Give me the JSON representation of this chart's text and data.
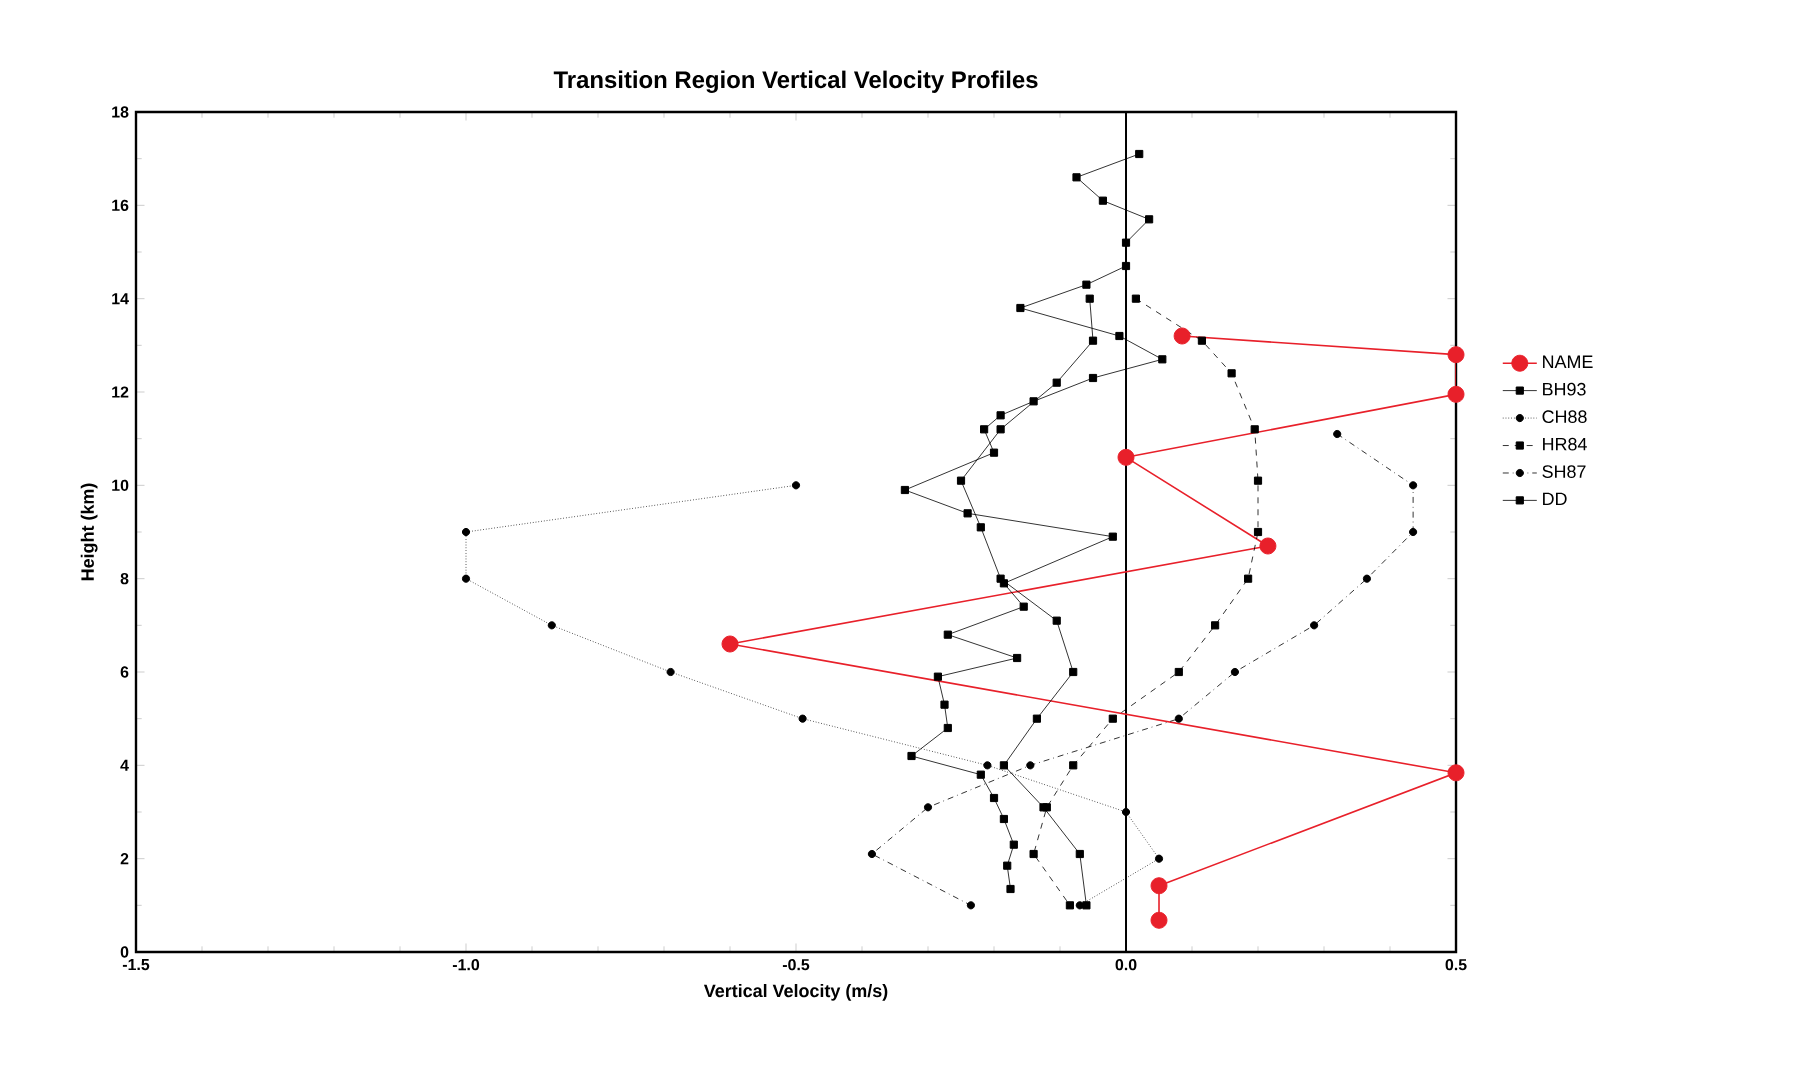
{
  "chart_data": {
    "type": "line",
    "title": "Transition Region Vertical Velocity Profiles",
    "xlabel": "Vertical Velocity (m/s)",
    "ylabel": "Height (km)",
    "xlim": [
      -1.5,
      0.5
    ],
    "ylim": [
      0,
      18
    ],
    "xticks": [
      {
        "value": -1.5,
        "label": "-1.5"
      },
      {
        "value": -1.0,
        "label": "-1.0"
      },
      {
        "value": -0.5,
        "label": "-0.5"
      },
      {
        "value": 0.0,
        "label": "0.0"
      },
      {
        "value": 0.5,
        "label": "0.5"
      }
    ],
    "yticks": [
      0,
      2,
      4,
      6,
      8,
      10,
      12,
      14,
      16,
      18
    ],
    "grid": false,
    "legend": "right",
    "ref_lines": [
      {
        "axis": "x",
        "value": 0,
        "color": "#000000",
        "line_style": "solid"
      }
    ],
    "series": [
      {
        "name": "NAME",
        "color": "#e8202a",
        "marker": "circle",
        "line_style": "solid",
        "x": [
          0.085,
          0.5,
          0.5,
          0.0,
          0.215,
          -0.6,
          0.5,
          0.05,
          0.05
        ],
        "values": [
          13.2,
          12.8,
          11.95,
          10.6,
          8.7,
          6.6,
          3.84,
          1.42,
          0.68
        ]
      },
      {
        "name": "BH93",
        "color": "#000000",
        "marker": "square",
        "line_style": "solid",
        "x": [
          -0.055,
          -0.05,
          -0.105,
          -0.19,
          -0.25,
          -0.22,
          -0.19,
          -0.105,
          -0.08,
          -0.135,
          -0.185,
          -0.125,
          -0.07,
          -0.06
        ],
        "values": [
          14.0,
          13.1,
          12.2,
          11.2,
          10.1,
          9.1,
          8.0,
          7.1,
          6.0,
          5.0,
          4.0,
          3.1,
          2.1,
          1.0
        ]
      },
      {
        "name": "CH88",
        "color": "#000000",
        "marker": "circle",
        "line_style": "dotted",
        "x": [
          -0.5,
          -1.0,
          -1.0,
          -0.87,
          -0.69,
          -0.49,
          -0.21,
          0.0,
          0.05,
          -0.07
        ],
        "values": [
          10.0,
          9.0,
          8.0,
          7.0,
          6.0,
          5.0,
          4.0,
          3.0,
          2.0,
          1.0
        ]
      },
      {
        "name": "HR84",
        "color": "#000000",
        "marker": "square",
        "line_style": "dashed",
        "x": [
          0.015,
          0.115,
          0.16,
          0.195,
          0.2,
          0.2,
          0.185,
          0.135,
          0.08,
          -0.02,
          -0.08,
          -0.12,
          -0.14,
          -0.085
        ],
        "values": [
          14.0,
          13.1,
          12.4,
          11.2,
          10.1,
          9.0,
          8.0,
          7.0,
          6.0,
          5.0,
          4.0,
          3.1,
          2.1,
          1.0
        ]
      },
      {
        "name": "SH87",
        "color": "#000000",
        "marker": "circle",
        "line_style": "dashdotted",
        "x": [
          0.32,
          0.435,
          0.435,
          0.365,
          0.285,
          0.165,
          0.08,
          -0.145,
          -0.3,
          -0.385,
          -0.235
        ],
        "values": [
          11.1,
          10.0,
          9.0,
          8.0,
          7.0,
          6.0,
          5.0,
          4.0,
          3.1,
          2.1,
          1.0
        ]
      },
      {
        "name": "DD",
        "color": "#000000",
        "marker": "square",
        "line_style": "solid",
        "x": [
          0.02,
          -0.075,
          -0.035,
          0.035,
          0.0,
          0.0,
          -0.06,
          -0.16,
          -0.01,
          0.055,
          -0.05,
          -0.14,
          -0.19,
          -0.215,
          -0.2,
          -0.335,
          -0.24,
          -0.02,
          -0.185,
          -0.155,
          -0.27,
          -0.165,
          -0.285,
          -0.275,
          -0.27,
          -0.325,
          -0.22,
          -0.2,
          -0.185,
          -0.17,
          -0.18,
          -0.175
        ],
        "values": [
          17.1,
          16.6,
          16.1,
          15.7,
          15.2,
          14.7,
          14.3,
          13.8,
          13.2,
          12.7,
          12.3,
          11.8,
          11.5,
          11.2,
          10.7,
          9.9,
          9.4,
          8.9,
          7.9,
          7.4,
          6.8,
          6.3,
          5.9,
          5.3,
          4.8,
          4.2,
          3.8,
          3.3,
          2.85,
          2.3,
          1.85,
          1.35
        ]
      }
    ]
  }
}
